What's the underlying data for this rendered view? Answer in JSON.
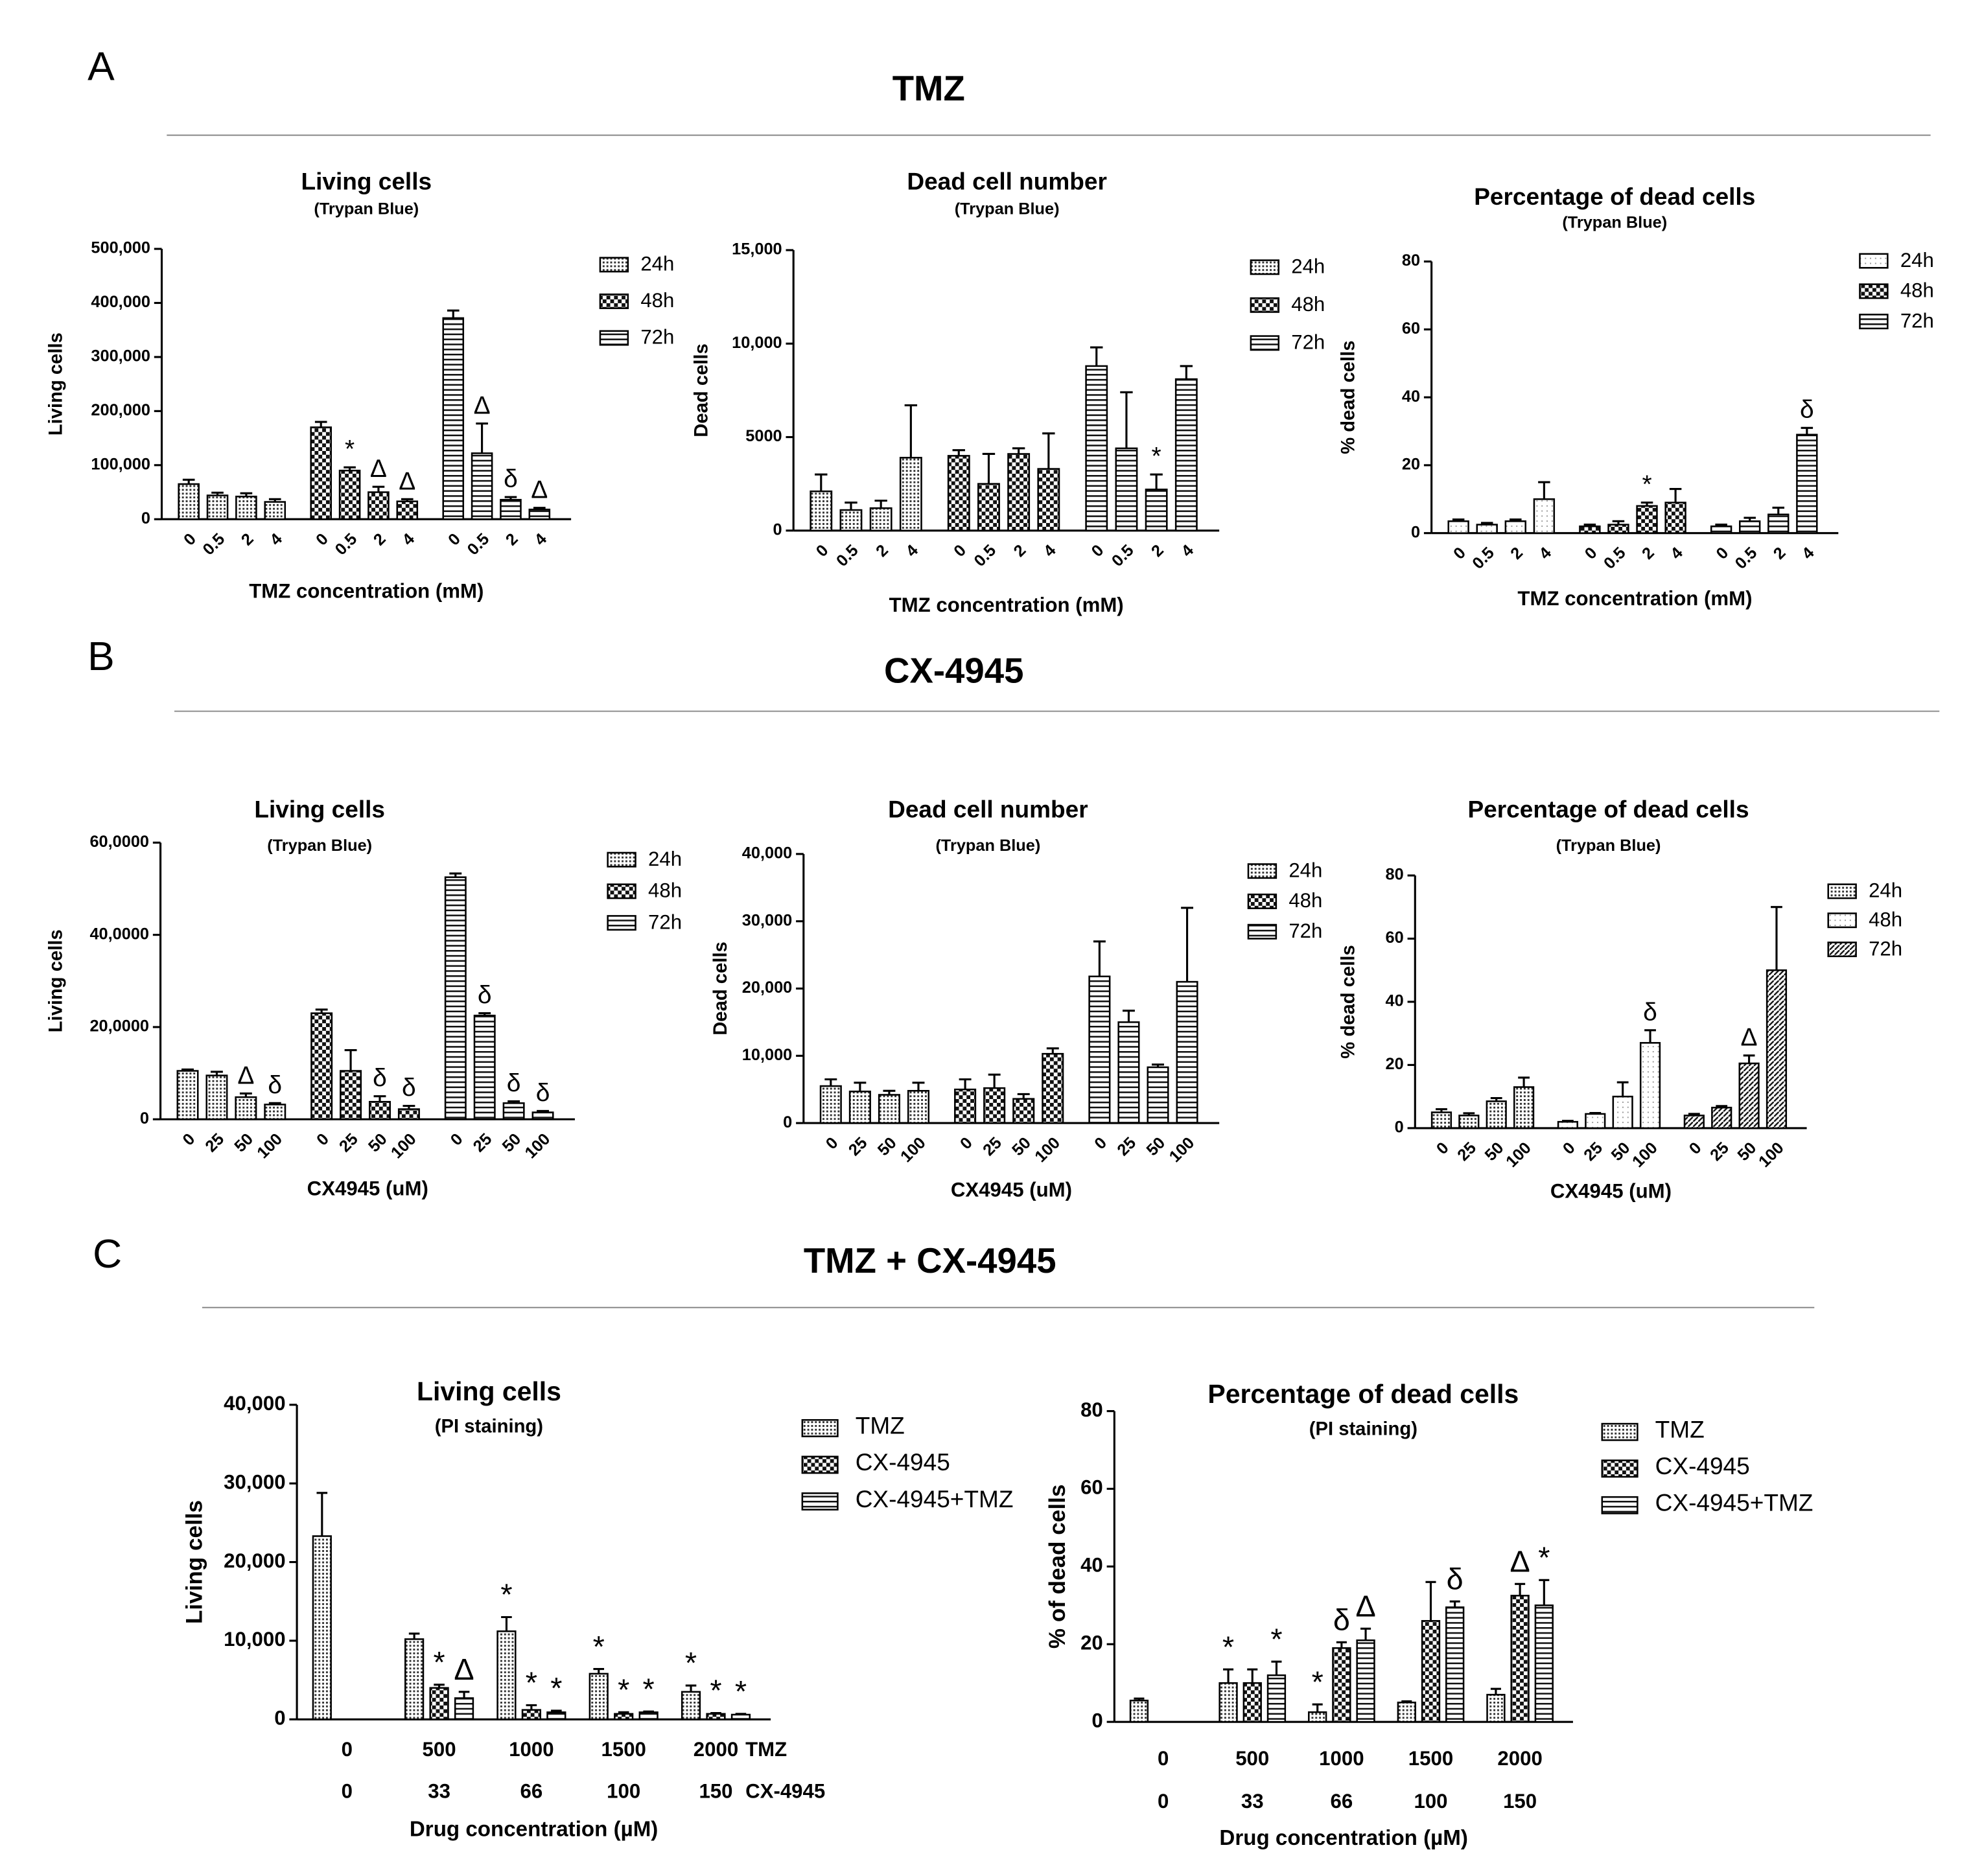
{
  "panels": [
    {
      "label": "A",
      "title": "TMZ"
    },
    {
      "label": "B",
      "title": "CX-4945"
    },
    {
      "label": "C",
      "title": "TMZ + CX-4945"
    }
  ],
  "chart_data": [
    {
      "type": "bar",
      "title": "Living cells",
      "subtitle": "(Trypan  Blue)",
      "ylabel": "Living cells",
      "xlabel": "TMZ concentration (mM)",
      "categories": [
        "0",
        "0.5",
        "2",
        "4"
      ],
      "ylim": [
        0,
        500000
      ],
      "yticks": [
        0,
        {
          "value": 100000,
          "label": "100,000"
        },
        {
          "value": 200000,
          "label": "200,000"
        },
        {
          "value": 300000,
          "label": "300,000"
        },
        {
          "value": 400000,
          "label": "400,000"
        },
        {
          "value": 500000,
          "label": "500,000"
        }
      ],
      "series": [
        {
          "name": "24h",
          "pattern": "dots",
          "values": [
            65000,
            44000,
            42000,
            32000
          ],
          "errors": [
            8000,
            5000,
            6000,
            5000
          ],
          "labels": [
            null,
            null,
            null,
            null
          ]
        },
        {
          "name": "48h",
          "pattern": "checker",
          "values": [
            170000,
            90000,
            50000,
            33000
          ],
          "errors": [
            10000,
            6000,
            10000,
            4000
          ],
          "labels": [
            null,
            "*",
            "Δ",
            "Δ"
          ]
        },
        {
          "name": "72h",
          "pattern": "hlines",
          "values": [
            372000,
            122000,
            36000,
            18000
          ],
          "errors": [
            14000,
            55000,
            5000,
            3000
          ],
          "labels": [
            null,
            "Δ",
            "δ",
            "Δ"
          ]
        }
      ]
    },
    {
      "type": "bar",
      "title": "Dead cell number",
      "subtitle": "(Trypan  Blue)",
      "ylabel": "Dead cells",
      "xlabel": "TMZ concentration (mM)",
      "categories": [
        "0",
        "0.5",
        "2",
        "4"
      ],
      "ylim": [
        0,
        15000
      ],
      "yticks": [
        0,
        5000,
        {
          "value": 10000,
          "label": "10,000"
        },
        {
          "value": 15000,
          "label": "15,000"
        }
      ],
      "series": [
        {
          "name": "24h",
          "pattern": "dots",
          "values": [
            2100,
            1100,
            1200,
            3900
          ],
          "errors": [
            900,
            400,
            400,
            2800
          ],
          "labels": [
            null,
            null,
            null,
            null
          ]
        },
        {
          "name": "48h",
          "pattern": "checker",
          "values": [
            4000,
            2500,
            4100,
            3300
          ],
          "errors": [
            300,
            1600,
            300,
            1900
          ],
          "labels": [
            null,
            null,
            null,
            null
          ]
        },
        {
          "name": "72h",
          "pattern": "hlines",
          "values": [
            8800,
            4400,
            2200,
            8100
          ],
          "errors": [
            1000,
            3000,
            800,
            700
          ],
          "labels": [
            null,
            null,
            "*",
            null
          ]
        }
      ]
    },
    {
      "type": "bar",
      "title": "Percentage of dead cells",
      "subtitle": "(Trypan  Blue)",
      "ylabel": "% dead cells",
      "xlabel": "TMZ concentration (mM)",
      "categories": [
        "0",
        "0.5",
        "2",
        "4"
      ],
      "ylim": [
        0,
        80
      ],
      "yticks": [
        0,
        20,
        40,
        60,
        80
      ],
      "series": [
        {
          "name": "24h",
          "pattern": "blank",
          "values": [
            3.5,
            2.5,
            3.5,
            10
          ],
          "errors": [
            0.5,
            0.5,
            0.5,
            5
          ],
          "labels": [
            null,
            null,
            null,
            null
          ]
        },
        {
          "name": "48h",
          "pattern": "checker",
          "values": [
            2,
            2.5,
            8,
            9
          ],
          "errors": [
            0.5,
            1,
            1,
            4
          ],
          "labels": [
            null,
            null,
            "*",
            null
          ]
        },
        {
          "name": "72h",
          "pattern": "hlines",
          "values": [
            2,
            3.5,
            5.5,
            29
          ],
          "errors": [
            0.5,
            1,
            2,
            2
          ],
          "labels": [
            null,
            null,
            null,
            "δ"
          ]
        }
      ]
    },
    {
      "type": "bar",
      "title": "Living cells",
      "subtitle": "(Trypan  Blue)",
      "ylabel": "Living cells",
      "xlabel": "CX4945 (uM)",
      "categories": [
        "0",
        "25",
        "50",
        "100"
      ],
      "ylim": [
        0,
        600000
      ],
      "yticks": [
        0,
        {
          "value": 200000,
          "label": "20,0000"
        },
        {
          "value": 400000,
          "label": "40,0000"
        },
        {
          "value": 600000,
          "label": "60,0000"
        }
      ],
      "series": [
        {
          "name": "24h",
          "pattern": "dots",
          "values": [
            105000,
            95000,
            48000,
            32000
          ],
          "errors": [
            3000,
            8000,
            8000,
            3000
          ],
          "labels": [
            null,
            null,
            "Δ",
            "δ"
          ]
        },
        {
          "name": "48h",
          "pattern": "checker",
          "values": [
            230000,
            105000,
            38000,
            22000
          ],
          "errors": [
            8000,
            45000,
            12000,
            7000
          ],
          "labels": [
            null,
            null,
            "δ",
            "δ"
          ]
        },
        {
          "name": "72h",
          "pattern": "hlines",
          "values": [
            525000,
            225000,
            35000,
            15000
          ],
          "errors": [
            8000,
            5000,
            4000,
            3000
          ],
          "labels": [
            null,
            "δ",
            "δ",
            "δ"
          ]
        }
      ]
    },
    {
      "type": "bar",
      "title": "Dead cell number",
      "subtitle": "(Trypan  Blue)",
      "ylabel": "Dead cells",
      "xlabel": "CX4945 (uM)",
      "categories": [
        "0",
        "25",
        "50",
        "100"
      ],
      "ylim": [
        0,
        40000
      ],
      "yticks": [
        0,
        {
          "value": 10000,
          "label": "10,000"
        },
        {
          "value": 20000,
          "label": "20,000"
        },
        {
          "value": 30000,
          "label": "30,000"
        },
        {
          "value": 40000,
          "label": "40,000"
        }
      ],
      "series": [
        {
          "name": "24h",
          "pattern": "dots",
          "values": [
            5500,
            4700,
            4200,
            4800
          ],
          "errors": [
            1000,
            1300,
            600,
            1200
          ],
          "labels": [
            null,
            null,
            null,
            null
          ]
        },
        {
          "name": "48h",
          "pattern": "checker",
          "values": [
            5000,
            5200,
            3600,
            10300
          ],
          "errors": [
            1500,
            2000,
            700,
            800
          ],
          "labels": [
            null,
            null,
            null,
            null
          ]
        },
        {
          "name": "72h",
          "pattern": "hlines",
          "values": [
            21800,
            15000,
            8300,
            21000
          ],
          "errors": [
            5200,
            1700,
            400,
            11000
          ],
          "labels": [
            null,
            null,
            null,
            null
          ]
        }
      ]
    },
    {
      "type": "bar",
      "title": "Percentage of dead cells",
      "subtitle": "(Trypan  Blue)",
      "ylabel": "% dead cells",
      "xlabel": "CX4945 (uM)",
      "categories": [
        "0",
        "25",
        "50",
        "100"
      ],
      "ylim": [
        0,
        80
      ],
      "yticks": [
        0,
        20,
        40,
        60,
        80
      ],
      "series": [
        {
          "name": "24h",
          "pattern": "dots",
          "values": [
            5,
            4,
            8.5,
            13
          ],
          "errors": [
            1,
            0.7,
            1,
            3
          ],
          "labels": [
            null,
            null,
            null,
            null
          ]
        },
        {
          "name": "48h",
          "pattern": "blank",
          "values": [
            2,
            4.5,
            10,
            27
          ],
          "errors": [
            0.3,
            0.3,
            4.5,
            4
          ],
          "labels": [
            null,
            null,
            null,
            "δ"
          ]
        },
        {
          "name": "72h",
          "pattern": "diag",
          "values": [
            4,
            6.5,
            20.5,
            50
          ],
          "errors": [
            0.5,
            0.5,
            2.5,
            20
          ],
          "labels": [
            null,
            null,
            "Δ",
            null
          ]
        }
      ]
    },
    {
      "type": "bar",
      "title": "Living cells",
      "subtitle": "(PI staining)",
      "ylabel": "Living cells",
      "xlabel": "Drug concentration (µM)",
      "x_rows": [
        {
          "name": "TMZ",
          "labels": [
            "0",
            "500",
            "1000",
            "1500",
            "2000"
          ]
        },
        {
          "name": "CX-4945",
          "labels": [
            "0",
            "33",
            "66",
            "100",
            "150"
          ]
        }
      ],
      "ylim": [
        0,
        40000
      ],
      "yticks": [
        0,
        {
          "value": 10000,
          "label": "10,000"
        },
        {
          "value": 20000,
          "label": "20,000"
        },
        {
          "value": 30000,
          "label": "30,000"
        },
        {
          "value": 40000,
          "label": "40,000"
        }
      ],
      "series": [
        {
          "name": "TMZ",
          "pattern": "dots",
          "values": [
            23300,
            10200,
            11200,
            5800,
            3500
          ],
          "errors": [
            5500,
            700,
            1800,
            600,
            800
          ],
          "labels": [
            null,
            null,
            "*",
            "*",
            "*"
          ]
        },
        {
          "name": "CX-4945",
          "pattern": "checker",
          "values": [
            null,
            4000,
            1200,
            700,
            700
          ],
          "errors": [
            null,
            400,
            600,
            200,
            100
          ],
          "labels": [
            null,
            "*",
            "*",
            "*",
            "*"
          ]
        },
        {
          "name": "CX-4945+TMZ",
          "pattern": "hlines",
          "values": [
            null,
            2700,
            900,
            900,
            600
          ],
          "errors": [
            null,
            800,
            200,
            100,
            100
          ],
          "labels": [
            null,
            "Δ",
            "*",
            "*",
            "*"
          ]
        }
      ]
    },
    {
      "type": "bar",
      "title": "Percentage of dead cells",
      "subtitle": "(PI staining)",
      "ylabel": "% of dead cells",
      "xlabel": "Drug concentration (µM)",
      "x_rows": [
        {
          "labels": [
            "0",
            "500",
            "1000",
            "1500",
            "2000"
          ]
        },
        {
          "labels": [
            "0",
            "33",
            "66",
            "100",
            "150"
          ]
        }
      ],
      "ylim": [
        0,
        80
      ],
      "yticks": [
        0,
        20,
        40,
        60,
        80
      ],
      "series": [
        {
          "name": "TMZ",
          "pattern": "dots",
          "values": [
            5.5,
            10,
            2.5,
            5,
            7
          ],
          "errors": [
            0.5,
            3.5,
            2,
            0.3,
            1.5
          ],
          "labels": [
            null,
            "*",
            "*",
            null,
            null
          ]
        },
        {
          "name": "CX-4945",
          "pattern": "checker",
          "values": [
            null,
            10,
            19,
            26,
            32.5
          ],
          "errors": [
            null,
            3.5,
            1.5,
            10,
            3
          ],
          "labels": [
            null,
            null,
            "δ",
            null,
            "Δ"
          ]
        },
        {
          "name": "CX-4945+TMZ",
          "pattern": "hlines",
          "values": [
            null,
            12,
            21,
            29.5,
            30
          ],
          "errors": [
            null,
            3.5,
            3,
            1.5,
            6.5
          ],
          "labels": [
            null,
            "*",
            "Δ",
            "δ",
            "*"
          ]
        }
      ]
    }
  ]
}
